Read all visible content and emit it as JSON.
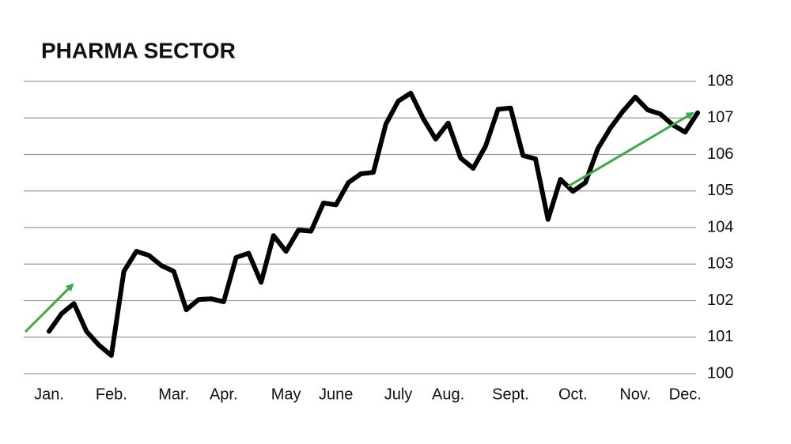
{
  "chart_data": {
    "type": "line",
    "title": "PHARMA SECTOR",
    "categories": [
      "Jan.",
      null,
      null,
      null,
      null,
      "Feb.",
      null,
      null,
      null,
      null,
      "Mar.",
      null,
      null,
      null,
      "Apr.",
      null,
      null,
      null,
      null,
      "May",
      null,
      null,
      null,
      "June",
      null,
      null,
      null,
      null,
      "July",
      null,
      null,
      null,
      "Aug.",
      null,
      null,
      null,
      null,
      "Sept.",
      null,
      null,
      null,
      null,
      "Oct.",
      null,
      null,
      null,
      null,
      "Nov.",
      null,
      null,
      null,
      "Dec.",
      null
    ],
    "values": [
      101.16,
      101.64,
      101.92,
      101.16,
      100.78,
      100.5,
      102.8,
      103.35,
      103.24,
      102.96,
      102.8,
      101.75,
      102.03,
      102.05,
      101.97,
      103.18,
      103.3,
      102.5,
      103.78,
      103.35,
      103.93,
      103.9,
      104.67,
      104.62,
      105.23,
      105.47,
      105.51,
      106.83,
      107.46,
      107.68,
      106.98,
      106.42,
      106.86,
      105.9,
      105.62,
      106.23,
      107.24,
      107.27,
      105.97,
      105.88,
      104.22,
      105.32,
      104.99,
      105.23,
      106.16,
      106.72,
      107.18,
      107.57,
      107.22,
      107.11,
      106.81,
      106.61,
      107.14
    ],
    "color": "#000000",
    "ylim": [
      100,
      108
    ],
    "yticks": [
      100,
      101,
      102,
      103,
      104,
      105,
      106,
      107,
      108
    ],
    "grid": true
  }
}
